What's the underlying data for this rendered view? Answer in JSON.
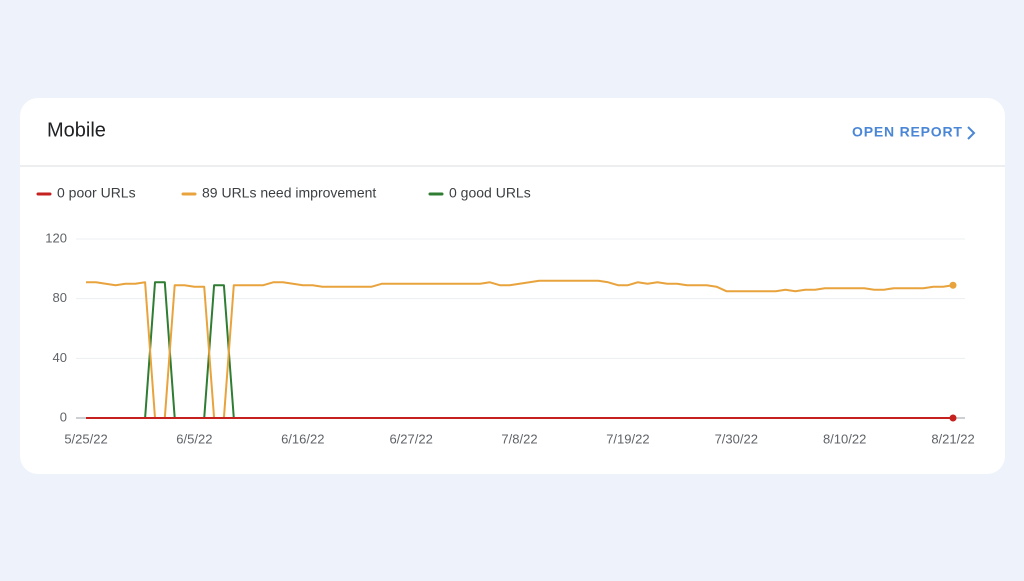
{
  "header": {
    "title": "Mobile",
    "link": "OPEN REPORT"
  },
  "chart_data": {
    "type": "line",
    "categories": [
      "5/25/22",
      null,
      null,
      null,
      null,
      null,
      null,
      null,
      null,
      null,
      null,
      "6/5/22",
      null,
      null,
      null,
      null,
      null,
      null,
      null,
      null,
      null,
      null,
      "6/16/22",
      null,
      null,
      null,
      null,
      null,
      null,
      null,
      null,
      null,
      null,
      "6/27/22",
      null,
      null,
      null,
      null,
      null,
      null,
      null,
      null,
      null,
      null,
      "7/8/22",
      null,
      null,
      null,
      null,
      null,
      null,
      null,
      null,
      null,
      null,
      "7/19/22",
      null,
      null,
      null,
      null,
      null,
      null,
      null,
      null,
      null,
      null,
      "7/30/22",
      null,
      null,
      null,
      null,
      null,
      null,
      null,
      null,
      null,
      null,
      "8/10/22",
      null,
      null,
      null,
      null,
      null,
      null,
      null,
      null,
      null,
      null,
      "8/21/22"
    ],
    "series": [
      {
        "name": "0 poor URLs",
        "color": "#c5221f",
        "values": [
          0,
          0,
          0,
          0,
          0,
          0,
          0,
          0,
          0,
          0,
          0,
          0,
          0,
          0,
          0,
          0,
          0,
          0,
          0,
          0,
          0,
          0,
          0,
          0,
          0,
          0,
          0,
          0,
          0,
          0,
          0,
          0,
          0,
          0,
          0,
          0,
          0,
          0,
          0,
          0,
          0,
          0,
          0,
          0,
          0,
          0,
          0,
          0,
          0,
          0,
          0,
          0,
          0,
          0,
          0,
          0,
          0,
          0,
          0,
          0,
          0,
          0,
          0,
          0,
          0,
          0,
          0,
          0,
          0,
          0,
          0,
          0,
          0,
          0,
          0,
          0,
          0,
          0,
          0,
          0,
          0,
          0,
          0,
          0,
          0,
          0,
          0,
          0,
          0
        ]
      },
      {
        "name": "89 URLs need improvement",
        "color": "#e8a33d",
        "values": [
          91,
          91,
          90,
          89,
          90,
          90,
          91,
          0,
          0,
          89,
          89,
          88,
          88,
          0,
          0,
          89,
          89,
          89,
          89,
          91,
          91,
          90,
          89,
          89,
          88,
          88,
          88,
          88,
          88,
          88,
          90,
          90,
          90,
          90,
          90,
          90,
          90,
          90,
          90,
          90,
          90,
          91,
          89,
          89,
          90,
          91,
          92,
          92,
          92,
          92,
          92,
          92,
          92,
          91,
          89,
          89,
          91,
          90,
          91,
          90,
          90,
          89,
          89,
          89,
          88,
          85,
          85,
          85,
          85,
          85,
          85,
          86,
          85,
          86,
          86,
          87,
          87,
          87,
          87,
          87,
          86,
          86,
          87,
          87,
          87,
          87,
          88,
          88,
          89
        ]
      },
      {
        "name": "0 good URLs",
        "color": "#2e7d32",
        "values": [
          0,
          0,
          0,
          0,
          0,
          0,
          0,
          91,
          91,
          0,
          0,
          0,
          0,
          89,
          89,
          0,
          0,
          0,
          0,
          0,
          0,
          0,
          0,
          0,
          0,
          0,
          0,
          0,
          0,
          0,
          0,
          0,
          0,
          0,
          0,
          0,
          0,
          0,
          0,
          0,
          0,
          0,
          0,
          0,
          0,
          0,
          0,
          0,
          0,
          0,
          0,
          0,
          0,
          0,
          0,
          0,
          0,
          0,
          0,
          0,
          0,
          0,
          0,
          0,
          0,
          0,
          0,
          0,
          0,
          0,
          0,
          0,
          0,
          0,
          0,
          0,
          0,
          0,
          0,
          0,
          0,
          0,
          0,
          0,
          0,
          0,
          0,
          0,
          0
        ]
      }
    ],
    "ylim": [
      0,
      120
    ],
    "yticks": [
      0,
      40,
      80,
      120
    ],
    "grid": true
  }
}
